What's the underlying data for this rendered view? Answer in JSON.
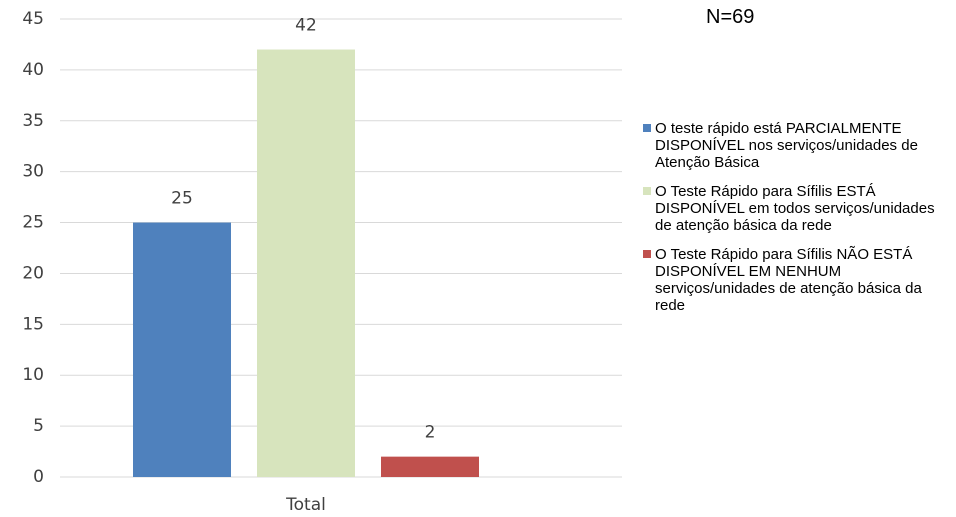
{
  "chart_data": {
    "type": "bar",
    "annotation": "N=69",
    "categories": [
      "Total"
    ],
    "series": [
      {
        "name": "O teste rápido está PARCIALMENTE DISPONÍVEL nos serviços/unidades de Atenção Básica",
        "color": "#4f81bd",
        "values": [
          25
        ]
      },
      {
        "name": "O Teste Rápido para Sífilis ESTÁ DISPONÍVEL em todos serviços/unidades de atenção básica da rede",
        "color": "#d7e4bd",
        "values": [
          42
        ]
      },
      {
        "name": "O Teste Rápido para Sífilis NÃO ESTÁ DISPONÍVEL EM NENHUM serviços/unidades de atenção básica da rede",
        "color": "#c0504d",
        "values": [
          2
        ]
      }
    ],
    "ylim": [
      0,
      45
    ],
    "yticks": [
      0,
      5,
      10,
      15,
      20,
      25,
      30,
      35,
      40,
      45
    ],
    "grid": true
  }
}
